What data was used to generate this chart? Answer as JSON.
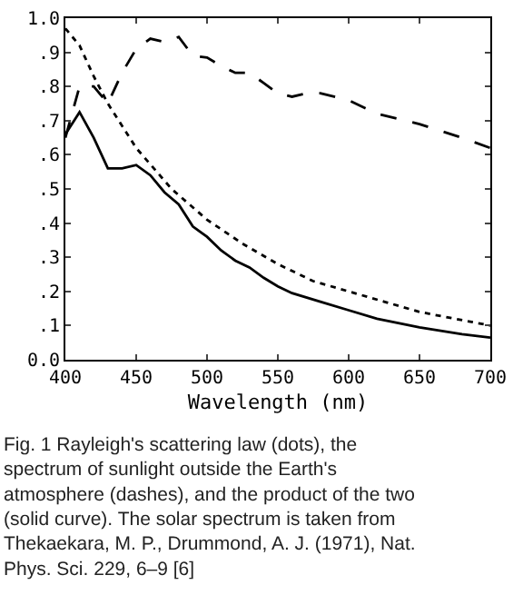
{
  "chart_data": {
    "type": "line",
    "xlabel": "Wavelength (nm)",
    "xlim": [
      400,
      700
    ],
    "xticks": [
      400,
      450,
      500,
      550,
      600,
      650,
      700
    ],
    "ylim": [
      0,
      1
    ],
    "yticks": [
      {
        "value": 0,
        "label": "0.0"
      },
      {
        "value": 0.1,
        "label": ".1"
      },
      {
        "value": 0.2,
        "label": ".2"
      },
      {
        "value": 0.3,
        "label": ".3"
      },
      {
        "value": 0.4,
        "label": ".4"
      },
      {
        "value": 0.5,
        "label": ".5"
      },
      {
        "value": 0.6,
        "label": ".6"
      },
      {
        "value": 0.7,
        "label": ".7"
      },
      {
        "value": 0.8,
        "label": ".8"
      },
      {
        "value": 0.9,
        "label": ".9"
      },
      {
        "value": 1,
        "label": "1.0"
      }
    ],
    "grid": false,
    "marker": "none",
    "series": [
      {
        "color": "#000000",
        "line_style": "dotted",
        "x": [
          400,
          410,
          420,
          430,
          450,
          475,
          500,
          525,
          550,
          575,
          600,
          625,
          650,
          675,
          700
        ],
        "values": [
          0.97,
          0.92,
          0.83,
          0.75,
          0.62,
          0.5,
          0.41,
          0.34,
          0.28,
          0.23,
          0.2,
          0.17,
          0.14,
          0.12,
          0.1
        ]
      },
      {
        "color": "#000000",
        "line_style": "dashed",
        "x": [
          400,
          410,
          420,
          430,
          440,
          450,
          460,
          470,
          480,
          490,
          500,
          510,
          520,
          530,
          540,
          550,
          560,
          570,
          580,
          600,
          620,
          650,
          680,
          700
        ],
        "values": [
          0.65,
          0.8,
          0.8,
          0.75,
          0.84,
          0.91,
          0.94,
          0.93,
          0.945,
          0.89,
          0.885,
          0.86,
          0.84,
          0.84,
          0.81,
          0.78,
          0.77,
          0.78,
          0.78,
          0.76,
          0.72,
          0.69,
          0.65,
          0.62
        ]
      },
      {
        "color": "#000000",
        "line_style": "solid",
        "x": [
          400,
          410,
          420,
          430,
          440,
          450,
          460,
          470,
          480,
          490,
          500,
          510,
          520,
          530,
          540,
          550,
          560,
          580,
          600,
          620,
          650,
          680,
          700
        ],
        "values": [
          0.66,
          0.725,
          0.65,
          0.56,
          0.56,
          0.57,
          0.54,
          0.49,
          0.455,
          0.39,
          0.36,
          0.32,
          0.29,
          0.27,
          0.24,
          0.215,
          0.195,
          0.17,
          0.145,
          0.12,
          0.095,
          0.075,
          0.065
        ]
      }
    ],
    "annotations": [
      "Fig. 1 Rayleigh's scattering law (dots), the spectrum of sunlight outside the Earth's atmosphere (dashes), and the product of the two (solid curve). The solar spectrum is taken from Thekaekara, M. P., Drummond, A. J. (1971), Nat. Phys. Sci. 229, 6–9 [6]"
    ]
  }
}
